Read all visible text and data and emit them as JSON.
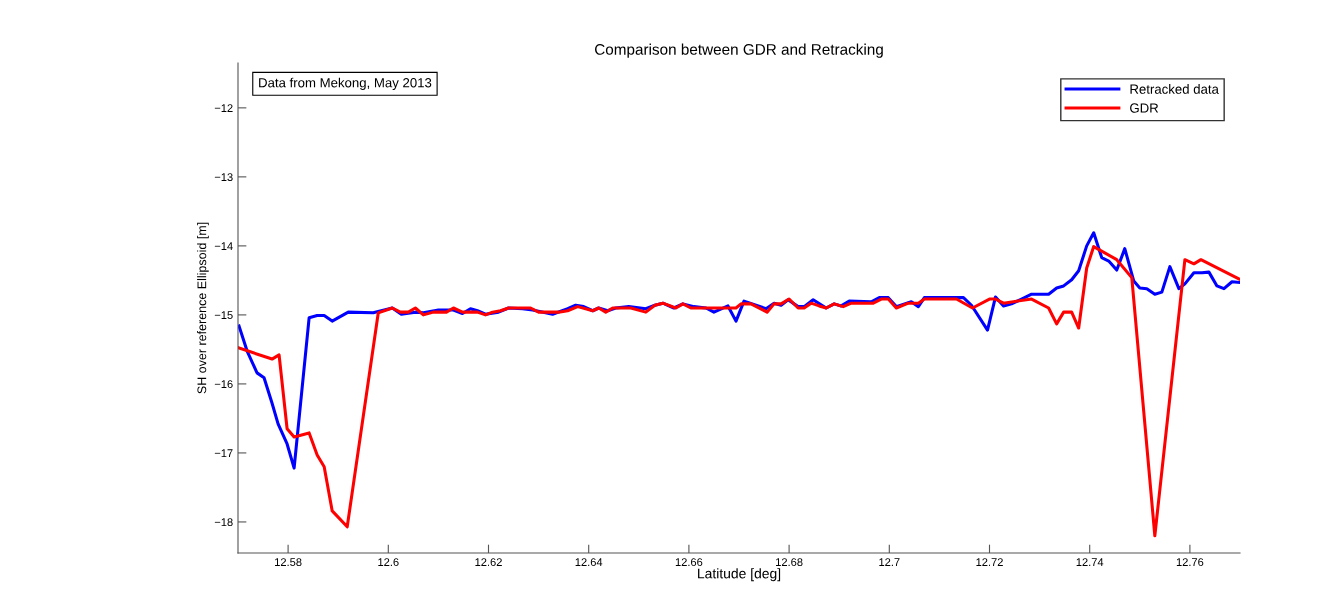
{
  "chart_data": {
    "type": "line",
    "title": "Comparison between GDR and Retracking",
    "xlabel": "Latitude [deg]",
    "ylabel": "SH over reference Ellipsoid [m]",
    "annotations": [
      "Data from Mekong, May 2013"
    ],
    "xlim": [
      12.57,
      12.77
    ],
    "ylim": [
      -18.45,
      -11.35
    ],
    "xticks": [
      12.58,
      12.6,
      12.62,
      12.64,
      12.66,
      12.68,
      12.7,
      12.72,
      12.74,
      12.76
    ],
    "yticks": [
      {
        "value": -18,
        "label": "−18"
      },
      {
        "value": -17,
        "label": "−17"
      },
      {
        "value": -16,
        "label": "−16"
      },
      {
        "value": -15,
        "label": "−15"
      },
      {
        "value": -14,
        "label": "−14"
      },
      {
        "value": -13,
        "label": "−13"
      },
      {
        "value": -12,
        "label": "−12"
      }
    ],
    "grid": false,
    "legend": "top right",
    "marker": "none",
    "line_style": "solid",
    "series": [
      {
        "name": "Retracked data",
        "color": "#0000ff",
        "x": [
          12.5702,
          12.5718,
          12.5738,
          12.5752,
          12.5768,
          12.578,
          12.5798,
          12.5812,
          12.5842,
          12.5858,
          12.5872,
          12.5888,
          12.592,
          12.597,
          12.6008,
          12.6026,
          12.6054,
          12.607,
          12.61,
          12.613,
          12.6148,
          12.6164,
          12.6178,
          12.6194,
          12.622,
          12.624,
          12.6268,
          12.6288,
          12.6328,
          12.6358,
          12.6374,
          12.639,
          12.6408,
          12.642,
          12.6438,
          12.6454,
          12.648,
          12.6514,
          12.6532,
          12.6548,
          12.657,
          12.6588,
          12.661,
          12.6634,
          12.665,
          12.6678,
          12.6694,
          12.671,
          12.6754,
          12.677,
          12.6784,
          12.6798,
          12.6818,
          12.683,
          12.6848,
          12.6874,
          12.689,
          12.6904,
          12.692,
          12.6964,
          12.698,
          12.6998,
          12.7014,
          12.7044,
          12.7058,
          12.707,
          12.7148,
          12.7164,
          12.7196,
          12.7212,
          12.7228,
          12.7244,
          12.7264,
          12.7284,
          12.7318,
          12.7334,
          12.7348,
          12.7364,
          12.7378,
          12.7394,
          12.7408,
          12.7424,
          12.7438,
          12.7454,
          12.747,
          12.7488,
          12.75,
          12.7514,
          12.753,
          12.7544,
          12.756,
          12.7578,
          12.759,
          12.7608,
          12.7624,
          12.7638,
          12.7654,
          12.7668,
          12.7684,
          12.7698
        ],
        "values": [
          -15.16,
          -15.52,
          -15.84,
          -15.91,
          -16.28,
          -16.58,
          -16.87,
          -17.22,
          -15.04,
          -15.01,
          -15.01,
          -15.09,
          -14.96,
          -14.97,
          -14.9,
          -14.99,
          -14.96,
          -14.97,
          -14.93,
          -14.93,
          -14.98,
          -14.91,
          -14.94,
          -14.99,
          -14.96,
          -14.9,
          -14.91,
          -14.93,
          -14.99,
          -14.91,
          -14.86,
          -14.88,
          -14.94,
          -14.9,
          -14.94,
          -14.9,
          -14.88,
          -14.91,
          -14.86,
          -14.83,
          -14.9,
          -14.84,
          -14.88,
          -14.9,
          -14.96,
          -14.87,
          -15.09,
          -14.8,
          -14.91,
          -14.83,
          -14.86,
          -14.78,
          -14.88,
          -14.88,
          -14.78,
          -14.9,
          -14.84,
          -14.87,
          -14.8,
          -14.81,
          -14.75,
          -14.75,
          -14.88,
          -14.81,
          -14.88,
          -14.75,
          -14.75,
          -14.86,
          -15.22,
          -14.74,
          -14.87,
          -14.84,
          -14.77,
          -14.7,
          -14.7,
          -14.61,
          -14.58,
          -14.49,
          -14.36,
          -14.0,
          -13.81,
          -14.17,
          -14.22,
          -14.35,
          -14.04,
          -14.51,
          -14.61,
          -14.62,
          -14.7,
          -14.67,
          -14.3,
          -14.62,
          -14.55,
          -14.39,
          -14.39,
          -14.38,
          -14.58,
          -14.62,
          -14.52,
          -14.53
        ]
      },
      {
        "name": "GDR",
        "color": "#ff0000",
        "x": [
          12.5702,
          12.5768,
          12.5782,
          12.5798,
          12.5812,
          12.5842,
          12.5858,
          12.5872,
          12.5888,
          12.5918,
          12.598,
          12.6008,
          12.6024,
          12.604,
          12.6054,
          12.607,
          12.609,
          12.6116,
          12.613,
          12.6148,
          12.6178,
          12.6194,
          12.6208,
          12.6224,
          12.624,
          12.6284,
          12.63,
          12.634,
          12.6358,
          12.6378,
          12.6408,
          12.642,
          12.6434,
          12.6448,
          12.6484,
          12.6514,
          12.6532,
          12.6548,
          12.6574,
          12.6588,
          12.6604,
          12.6694,
          12.6704,
          12.6724,
          12.6756,
          12.677,
          12.6784,
          12.68,
          12.6818,
          12.683,
          12.6844,
          12.686,
          12.6874,
          12.689,
          12.6908,
          12.6924,
          12.6968,
          12.6984,
          12.6998,
          12.7014,
          12.7038,
          12.7058,
          12.707,
          12.7134,
          12.7166,
          12.72,
          12.7212,
          12.7228,
          12.7284,
          12.7318,
          12.7334,
          12.7348,
          12.7364,
          12.7378,
          12.7394,
          12.7408,
          12.7454,
          12.7484,
          12.753,
          12.759,
          12.7608,
          12.7622,
          12.7698
        ],
        "values": [
          -15.48,
          -15.64,
          -15.58,
          -16.65,
          -16.77,
          -16.71,
          -17.03,
          -17.2,
          -17.84,
          -18.07,
          -14.97,
          -14.9,
          -14.96,
          -14.96,
          -14.9,
          -15.0,
          -14.96,
          -14.96,
          -14.9,
          -14.96,
          -14.96,
          -15.0,
          -14.96,
          -14.94,
          -14.9,
          -14.9,
          -14.96,
          -14.96,
          -14.94,
          -14.88,
          -14.94,
          -14.9,
          -14.96,
          -14.9,
          -14.9,
          -14.96,
          -14.86,
          -14.83,
          -14.9,
          -14.84,
          -14.9,
          -14.9,
          -14.84,
          -14.84,
          -14.96,
          -14.84,
          -14.84,
          -14.77,
          -14.9,
          -14.9,
          -14.83,
          -14.87,
          -14.9,
          -14.84,
          -14.88,
          -14.83,
          -14.83,
          -14.77,
          -14.77,
          -14.9,
          -14.83,
          -14.83,
          -14.77,
          -14.77,
          -14.9,
          -14.77,
          -14.77,
          -14.83,
          -14.77,
          -14.9,
          -15.13,
          -14.96,
          -14.96,
          -15.19,
          -14.32,
          -14.01,
          -14.2,
          -14.46,
          -18.2,
          -14.2,
          -14.26,
          -14.2,
          -14.48
        ]
      }
    ]
  }
}
